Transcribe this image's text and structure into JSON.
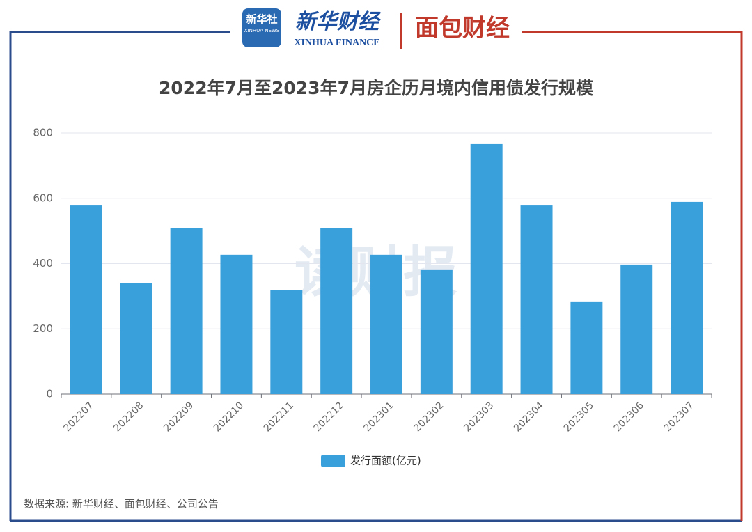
{
  "header": {
    "logo_xinhua": "新华社",
    "logo_xinhua_en": "XINHUA NEWS",
    "logo_finance": "新华财经",
    "logo_finance_en": "XINHUA FINANCE",
    "logo_mianbao": "面包财经"
  },
  "chart_data": {
    "type": "bar",
    "title": "2022年7月至2023年7月房企历月境内信用债发行规模",
    "categories": [
      "202207",
      "202208",
      "202209",
      "202210",
      "202211",
      "202212",
      "202301",
      "202302",
      "202303",
      "202304",
      "202305",
      "202306",
      "202307"
    ],
    "series": [
      {
        "name": "发行面额(亿元)",
        "color": "#3aa0db",
        "values": [
          578,
          340,
          508,
          427,
          320,
          508,
          427,
          380,
          766,
          578,
          284,
          397,
          589
        ]
      }
    ],
    "ylim": [
      0,
      800
    ],
    "yticks": [
      0,
      200,
      400,
      600,
      800
    ],
    "grid": true,
    "watermark": "读财报",
    "source": "数据来源: 新华财经、面包财经、公司公告"
  }
}
